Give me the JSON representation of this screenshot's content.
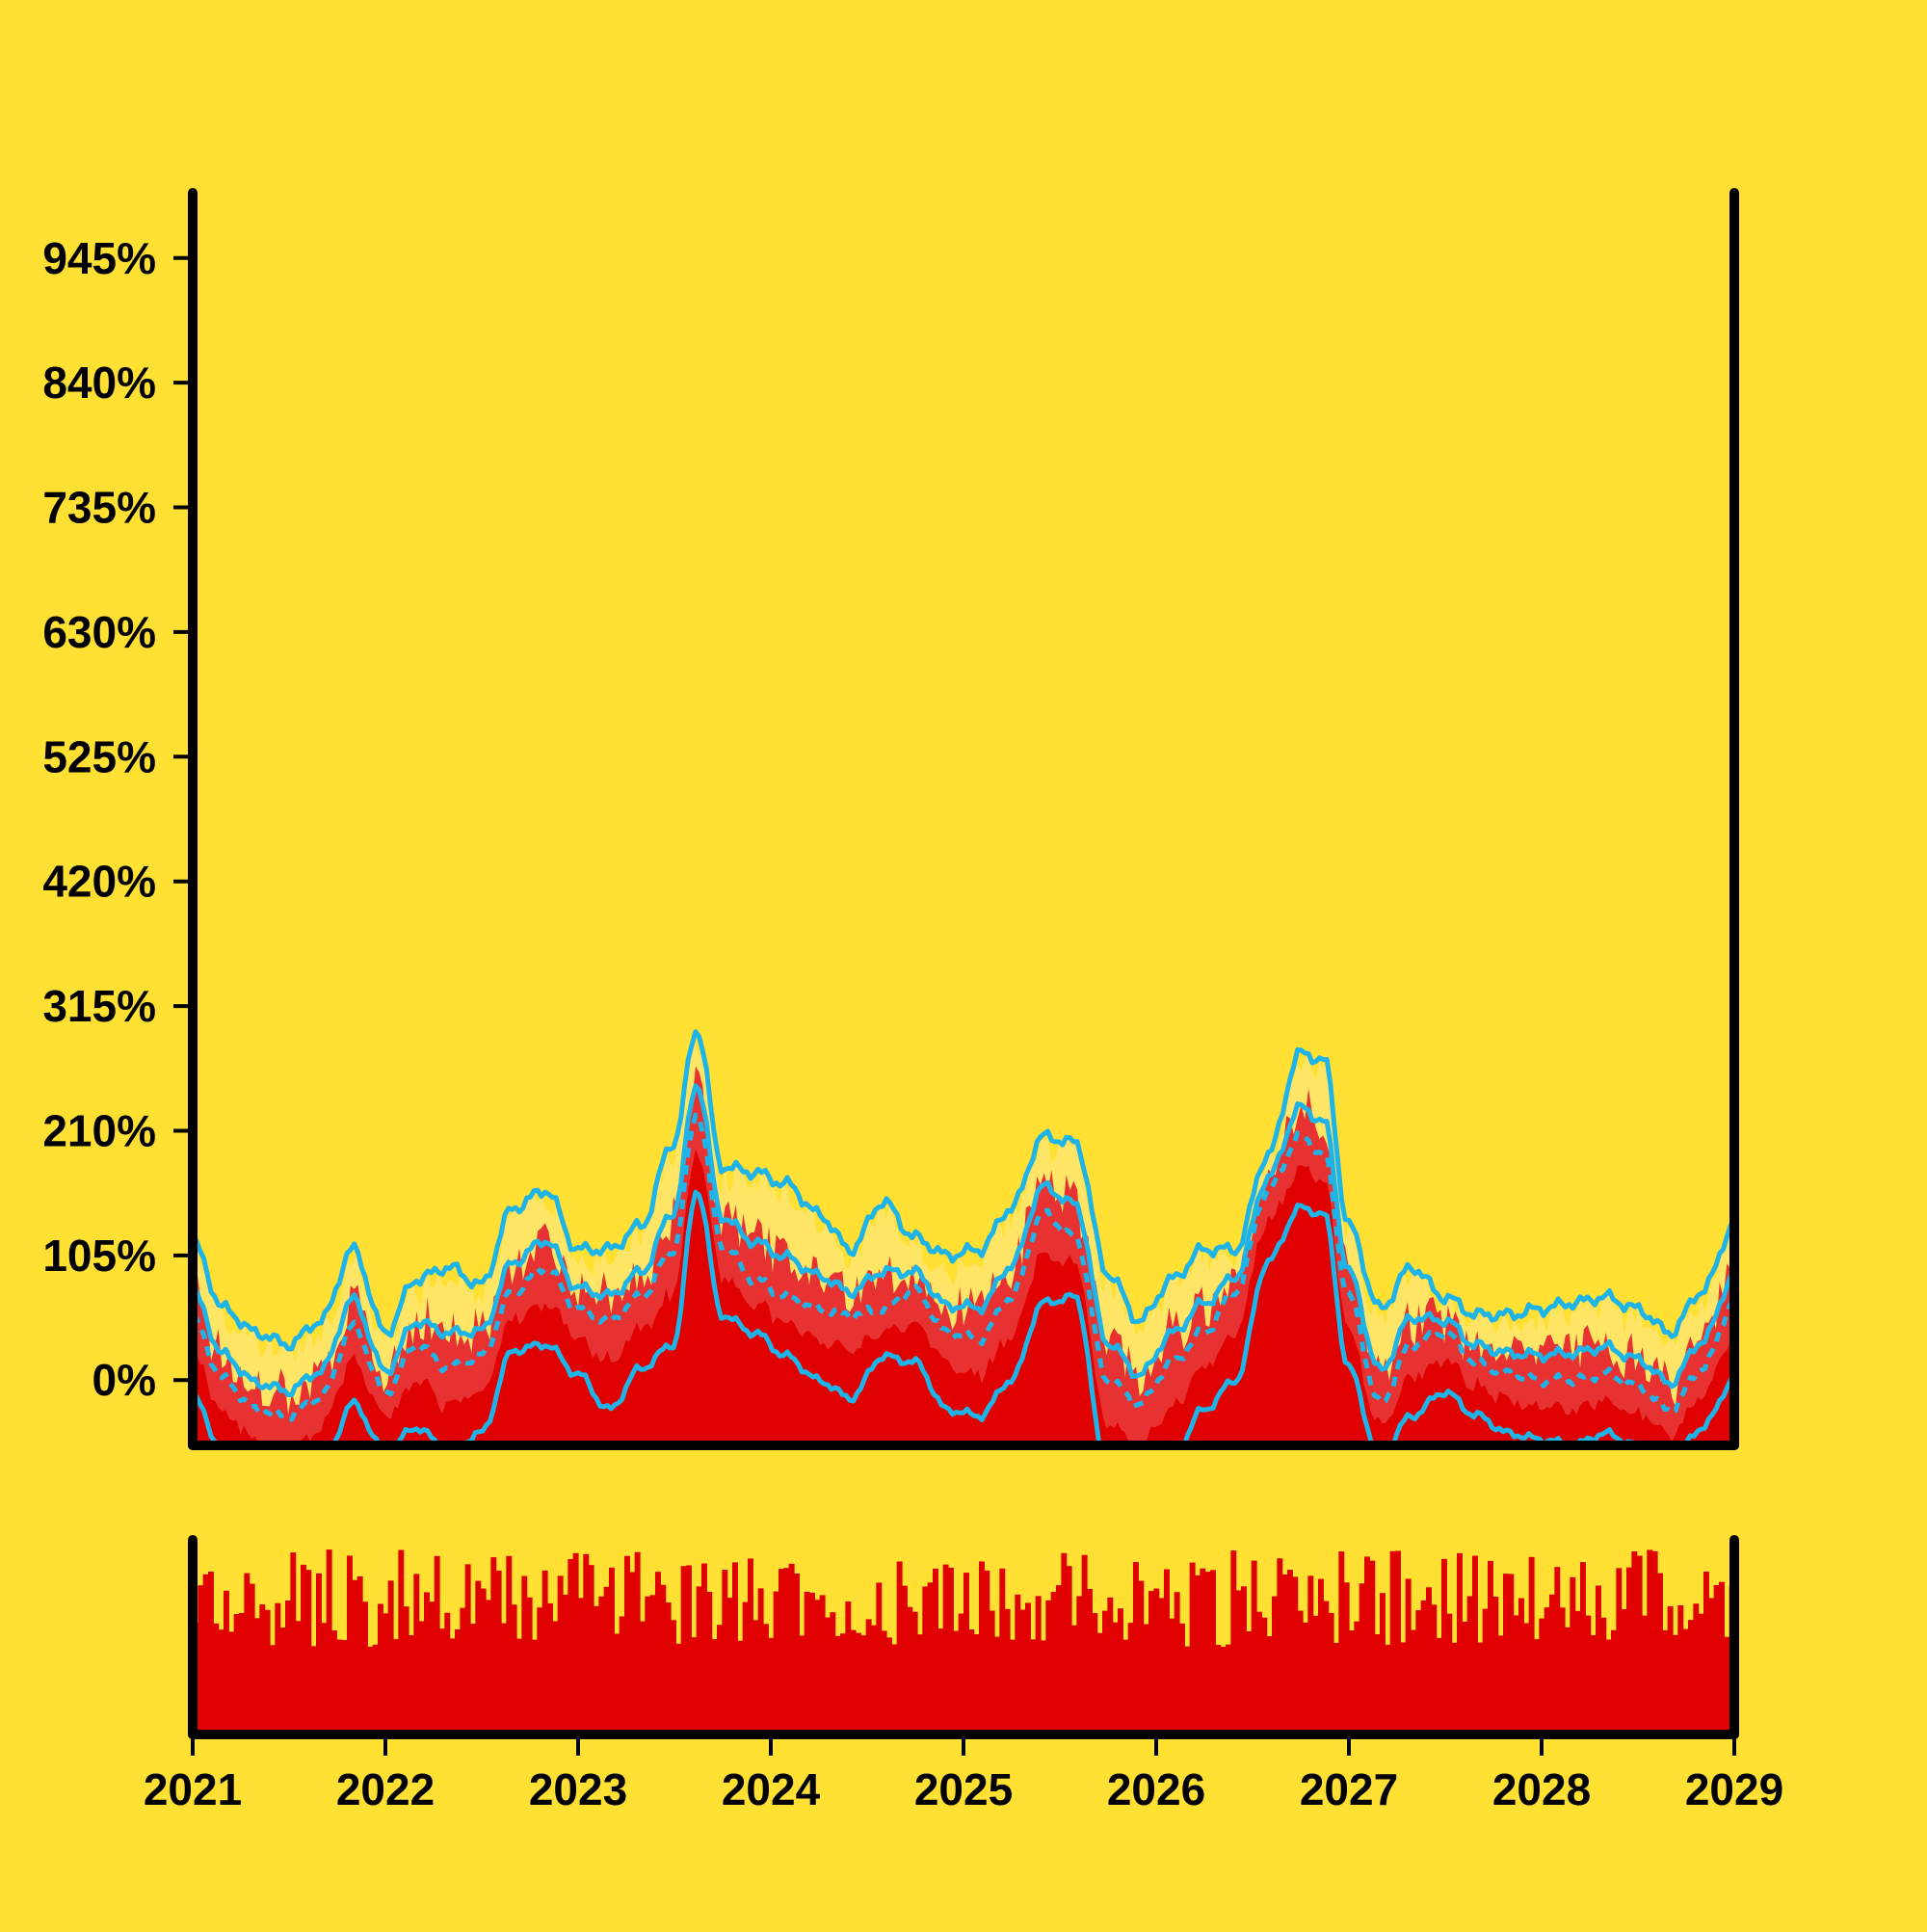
{
  "chart_data": {
    "type": "area",
    "background_color": "#FFE033",
    "colors": {
      "area_dark": "#E00000",
      "area_mid": "#E83232",
      "area_light": "#FFE566",
      "bands": "#1EB4E8",
      "axis": "#000000",
      "volume_bar": "#E00000"
    },
    "x_axis": {
      "type": "date",
      "range": [
        "2021-01-01",
        "2029-01-01"
      ],
      "tick_labels": [
        "2021",
        "2022",
        "2023",
        "2024",
        "2025",
        "2026",
        "2027",
        "2028",
        "2029"
      ]
    },
    "y_axis": {
      "unit": "%",
      "range": [
        -55,
        1000
      ],
      "tick_values": [
        0,
        105,
        210,
        315,
        420,
        525,
        630,
        735,
        840,
        945
      ],
      "tick_labels": [
        "0%",
        "105%",
        "210%",
        "315%",
        "420%",
        "525%",
        "630%",
        "735%",
        "840%",
        "945%"
      ]
    },
    "grid": false,
    "legend": "none",
    "series_keypoints": {
      "dates": [
        "2021-01-01",
        "2021-03-01",
        "2021-05-01",
        "2021-07-01",
        "2021-09-01",
        "2021-11-01",
        "2022-01-01",
        "2022-03-01",
        "2022-05-01",
        "2022-07-01",
        "2022-09-01",
        "2022-11-01",
        "2023-01-01",
        "2023-03-01",
        "2023-05-01",
        "2023-07-01",
        "2023-08-15",
        "2023-10-01",
        "2023-12-01",
        "2024-02-01",
        "2024-04-01",
        "2024-06-01",
        "2024-08-01",
        "2024-10-01",
        "2024-12-01",
        "2025-02-01",
        "2025-04-01",
        "2025-06-01",
        "2025-08-01",
        "2025-10-01",
        "2025-12-01",
        "2026-02-01",
        "2026-04-01",
        "2026-06-01",
        "2026-08-01",
        "2026-10-01",
        "2026-11-15",
        "2027-01-01",
        "2027-03-01",
        "2027-05-01",
        "2027-07-01",
        "2027-09-01",
        "2027-11-01",
        "2028-01-01",
        "2028-03-01",
        "2028-05-01",
        "2028-07-01",
        "2028-09-01",
        "2028-11-01",
        "2029-01-01"
      ],
      "center": [
        50,
        0,
        -25,
        -30,
        -15,
        45,
        -10,
        30,
        10,
        20,
        75,
        95,
        60,
        50,
        70,
        110,
        225,
        115,
        85,
        70,
        60,
        55,
        60,
        75,
        40,
        35,
        70,
        140,
        120,
        0,
        -20,
        15,
        40,
        75,
        160,
        205,
        190,
        70,
        -20,
        30,
        40,
        15,
        5,
        0,
        0,
        5,
        -5,
        -25,
        10,
        65
      ],
      "upper": [
        115,
        60,
        40,
        30,
        50,
        110,
        40,
        85,
        95,
        80,
        145,
        160,
        110,
        110,
        130,
        200,
        295,
        180,
        175,
        165,
        140,
        110,
        150,
        120,
        105,
        110,
        145,
        205,
        200,
        90,
        50,
        85,
        110,
        110,
        190,
        275,
        270,
        130,
        60,
        95,
        70,
        55,
        55,
        60,
        65,
        70,
        60,
        40,
        75,
        130
      ],
      "lower": [
        -15,
        -60,
        -80,
        -100,
        -75,
        -20,
        -60,
        -40,
        -60,
        -45,
        25,
        30,
        5,
        -25,
        10,
        30,
        160,
        55,
        40,
        20,
        0,
        -15,
        20,
        15,
        -25,
        -30,
        0,
        65,
        70,
        -80,
        -95,
        -65,
        -25,
        0,
        100,
        145,
        140,
        10,
        -65,
        -30,
        -10,
        -30,
        -45,
        -50,
        -55,
        -45,
        -55,
        -70,
        -40,
        0
      ]
    },
    "volume_series": {
      "description_range": [
        0,
        100
      ],
      "typical": 72
    }
  }
}
